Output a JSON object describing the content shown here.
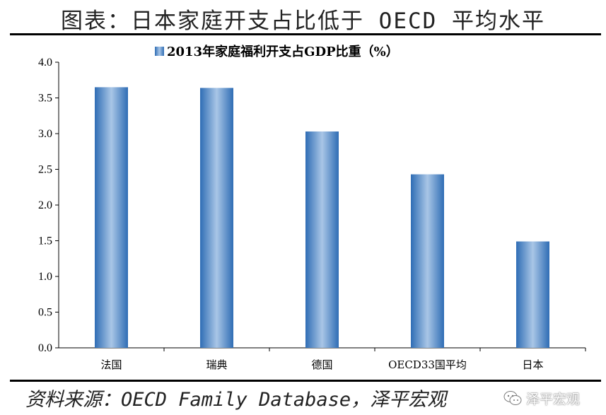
{
  "title": "图表：日本家庭开支占比低于 OECD 平均水平",
  "source": "资料来源：OECD Family Database，泽平宏观",
  "watermark": "泽平宏观",
  "colors": {
    "bar_dark": "#2f6db5",
    "bar_light": "#a9c6e6",
    "axis": "#000000"
  },
  "chart_data": {
    "type": "bar",
    "categories": [
      "法国",
      "瑞典",
      "德国",
      "OECD33国平均",
      "日本"
    ],
    "series": [
      {
        "name": "2013年家庭福利开支占GDP比重（%）",
        "values": [
          3.65,
          3.64,
          3.03,
          2.43,
          1.49
        ]
      }
    ],
    "ylim": [
      0,
      4.0
    ],
    "yticks": [
      "0.0",
      "0.5",
      "1.0",
      "1.5",
      "2.0",
      "2.5",
      "3.0",
      "3.5",
      "4.0"
    ],
    "legend_position": "top",
    "grid": false
  }
}
